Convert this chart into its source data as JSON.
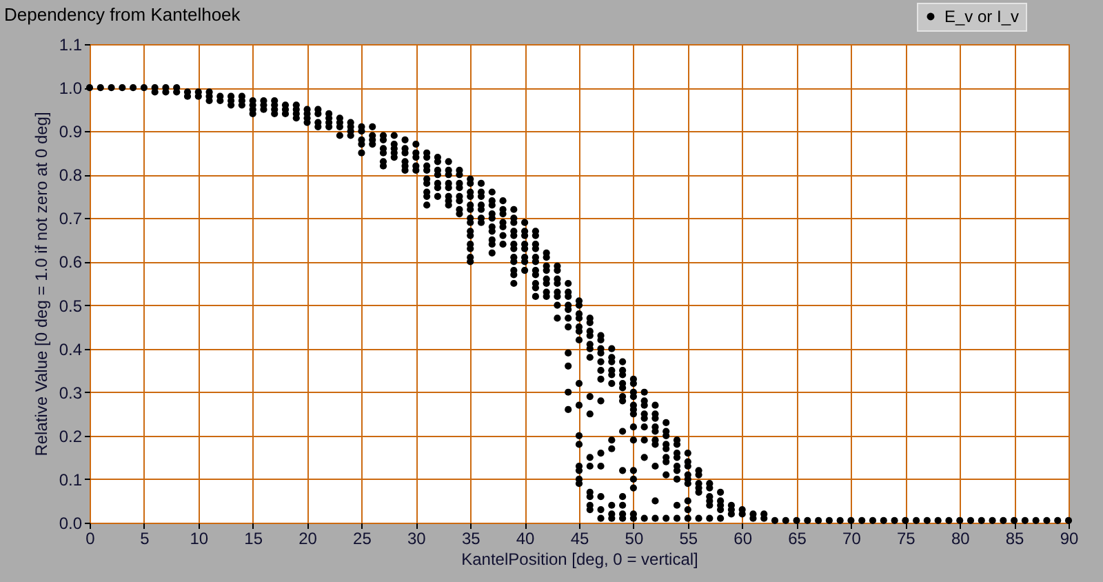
{
  "chart_data": {
    "type": "scatter",
    "title": "Dependency from Kantelhoek",
    "xlabel": "KantelPosition [deg, 0 = vertical]",
    "ylabel": "Relative Value [0 deg = 1.0 if not zero at 0 deg]",
    "xlim": [
      0,
      90
    ],
    "ylim": [
      0,
      1.1
    ],
    "xticks": [
      0,
      5,
      10,
      15,
      20,
      25,
      30,
      35,
      40,
      45,
      50,
      55,
      60,
      65,
      70,
      75,
      80,
      85,
      90
    ],
    "yticks": [
      {
        "value": 0,
        "label": "0.0"
      },
      {
        "value": 0.1,
        "label": "0.1"
      },
      {
        "value": 0.2,
        "label": "0.2"
      },
      {
        "value": 0.3,
        "label": "0.3"
      },
      {
        "value": 0.4,
        "label": "0.4"
      },
      {
        "value": 0.5,
        "label": "0.5"
      },
      {
        "value": 0.6,
        "label": "0.6"
      },
      {
        "value": 0.7,
        "label": "0.7"
      },
      {
        "value": 0.8,
        "label": "0.8"
      },
      {
        "value": 0.9,
        "label": "0.9"
      },
      {
        "value": 1,
        "label": "1.0"
      },
      {
        "value": 1.1,
        "label": "1.1"
      }
    ],
    "grid": true,
    "legend": "top right",
    "marker": "circle",
    "series": [
      {
        "name": "E_v or I_v",
        "color": "#000000",
        "x": [
          0,
          1,
          2,
          3,
          4,
          5,
          6,
          6,
          7,
          7,
          8,
          8,
          9,
          9,
          10,
          10,
          11,
          11,
          11,
          12,
          12,
          13,
          13,
          13,
          14,
          14,
          14,
          15,
          15,
          15,
          15,
          16,
          16,
          16,
          17,
          17,
          17,
          17,
          18,
          18,
          18,
          19,
          19,
          19,
          19,
          20,
          20,
          20,
          20,
          21,
          21,
          21,
          21,
          22,
          22,
          22,
          22,
          23,
          23,
          23,
          23,
          24,
          24,
          24,
          24,
          25,
          25,
          25,
          25,
          25,
          26,
          26,
          26,
          26,
          27,
          27,
          27,
          27,
          27,
          27,
          28,
          28,
          28,
          28,
          28,
          29,
          29,
          29,
          29,
          29,
          29,
          30,
          30,
          30,
          30,
          30,
          31,
          31,
          31,
          31,
          31,
          31,
          31,
          31,
          31,
          32,
          32,
          32,
          32,
          32,
          32,
          32,
          33,
          33,
          33,
          33,
          33,
          33,
          33,
          33,
          34,
          34,
          34,
          34,
          34,
          34,
          34,
          34,
          35,
          35,
          35,
          35,
          35,
          35,
          35,
          35,
          35,
          35,
          35,
          35,
          35,
          35,
          36,
          36,
          36,
          36,
          36,
          36,
          36,
          37,
          37,
          37,
          37,
          37,
          37,
          37,
          37,
          37,
          37,
          38,
          38,
          38,
          38,
          38,
          38,
          38,
          39,
          39,
          39,
          39,
          39,
          39,
          39,
          39,
          39,
          39,
          39,
          39,
          40,
          40,
          40,
          40,
          40,
          40,
          40,
          40,
          41,
          41,
          41,
          41,
          41,
          41,
          41,
          41,
          41,
          41,
          41,
          42,
          42,
          42,
          42,
          42,
          42,
          42,
          42,
          43,
          43,
          43,
          43,
          43,
          43,
          43,
          43,
          44,
          44,
          44,
          44,
          44,
          44,
          44,
          44,
          44,
          44,
          44,
          45,
          45,
          45,
          45,
          45,
          45,
          45,
          45,
          45,
          45,
          45,
          45,
          45,
          45,
          45,
          46,
          46,
          46,
          46,
          46,
          46,
          46,
          46,
          46,
          46,
          46,
          46,
          46,
          46,
          46,
          47,
          47,
          47,
          47,
          47,
          47,
          47,
          47,
          47,
          47,
          47,
          47,
          47,
          48,
          48,
          48,
          48,
          48,
          48,
          48,
          48,
          48,
          48,
          48,
          49,
          49,
          49,
          49,
          49,
          49,
          49,
          49,
          49,
          49,
          49,
          49,
          49,
          50,
          50,
          50,
          50,
          50,
          50,
          50,
          50,
          50,
          50,
          50,
          50,
          50,
          50,
          51,
          51,
          51,
          51,
          51,
          51,
          51,
          51,
          51,
          52,
          52,
          52,
          52,
          52,
          52,
          52,
          52,
          52,
          52,
          53,
          53,
          53,
          53,
          53,
          53,
          53,
          53,
          53,
          54,
          54,
          54,
          54,
          54,
          54,
          54,
          54,
          54,
          55,
          55,
          55,
          55,
          55,
          55,
          55,
          55,
          55,
          56,
          56,
          56,
          56,
          56,
          56,
          57,
          57,
          57,
          57,
          57,
          57,
          58,
          58,
          58,
          58,
          58,
          59,
          59,
          59,
          60,
          60,
          61,
          61,
          62,
          62,
          63,
          64,
          65,
          66,
          67,
          68,
          69,
          70,
          71,
          72,
          73,
          74,
          75,
          76,
          77,
          78,
          79,
          80,
          81,
          82,
          83,
          84,
          85,
          86,
          87,
          88,
          89,
          90
        ],
        "values": [
          1.0,
          1.0,
          1.0,
          1.0,
          1.0,
          1.0,
          1.0,
          0.99,
          1.0,
          0.99,
          1.0,
          0.99,
          0.99,
          0.98,
          0.99,
          0.98,
          0.99,
          0.98,
          0.97,
          0.98,
          0.97,
          0.98,
          0.97,
          0.96,
          0.98,
          0.97,
          0.96,
          0.97,
          0.96,
          0.95,
          0.94,
          0.97,
          0.96,
          0.95,
          0.97,
          0.96,
          0.95,
          0.94,
          0.96,
          0.95,
          0.94,
          0.96,
          0.95,
          0.94,
          0.93,
          0.95,
          0.94,
          0.93,
          0.92,
          0.95,
          0.94,
          0.92,
          0.91,
          0.94,
          0.93,
          0.92,
          0.91,
          0.93,
          0.92,
          0.91,
          0.89,
          0.92,
          0.91,
          0.9,
          0.89,
          0.91,
          0.9,
          0.88,
          0.87,
          0.85,
          0.91,
          0.89,
          0.88,
          0.87,
          0.89,
          0.88,
          0.86,
          0.85,
          0.83,
          0.82,
          0.89,
          0.87,
          0.86,
          0.85,
          0.84,
          0.88,
          0.86,
          0.85,
          0.83,
          0.82,
          0.81,
          0.87,
          0.85,
          0.84,
          0.82,
          0.81,
          0.85,
          0.84,
          0.82,
          0.81,
          0.79,
          0.78,
          0.76,
          0.75,
          0.73,
          0.84,
          0.83,
          0.81,
          0.8,
          0.78,
          0.77,
          0.75,
          0.83,
          0.81,
          0.8,
          0.78,
          0.77,
          0.75,
          0.74,
          0.73,
          0.81,
          0.8,
          0.78,
          0.77,
          0.75,
          0.74,
          0.72,
          0.71,
          0.79,
          0.78,
          0.76,
          0.75,
          0.73,
          0.72,
          0.7,
          0.69,
          0.67,
          0.66,
          0.64,
          0.63,
          0.61,
          0.6,
          0.78,
          0.76,
          0.75,
          0.73,
          0.72,
          0.7,
          0.69,
          0.76,
          0.74,
          0.73,
          0.71,
          0.7,
          0.68,
          0.67,
          0.65,
          0.64,
          0.62,
          0.74,
          0.72,
          0.71,
          0.69,
          0.68,
          0.66,
          0.64,
          0.72,
          0.7,
          0.69,
          0.67,
          0.66,
          0.64,
          0.63,
          0.61,
          0.6,
          0.58,
          0.57,
          0.55,
          0.69,
          0.67,
          0.66,
          0.64,
          0.63,
          0.61,
          0.6,
          0.58,
          0.67,
          0.66,
          0.64,
          0.63,
          0.61,
          0.6,
          0.58,
          0.57,
          0.55,
          0.54,
          0.52,
          0.62,
          0.61,
          0.59,
          0.58,
          0.56,
          0.55,
          0.53,
          0.52,
          0.59,
          0.58,
          0.56,
          0.55,
          0.53,
          0.52,
          0.5,
          0.47,
          0.55,
          0.53,
          0.52,
          0.5,
          0.49,
          0.47,
          0.45,
          0.39,
          0.36,
          0.3,
          0.26,
          0.51,
          0.5,
          0.48,
          0.47,
          0.45,
          0.44,
          0.42,
          0.32,
          0.27,
          0.2,
          0.18,
          0.13,
          0.12,
          0.1,
          0.09,
          0.47,
          0.46,
          0.44,
          0.43,
          0.41,
          0.4,
          0.38,
          0.29,
          0.25,
          0.15,
          0.13,
          0.07,
          0.06,
          0.04,
          0.03,
          0.43,
          0.42,
          0.4,
          0.39,
          0.37,
          0.35,
          0.33,
          0.28,
          0.16,
          0.13,
          0.06,
          0.03,
          0.01,
          0.4,
          0.38,
          0.37,
          0.35,
          0.34,
          0.32,
          0.19,
          0.17,
          0.04,
          0.02,
          0.01,
          0.37,
          0.35,
          0.34,
          0.32,
          0.31,
          0.29,
          0.28,
          0.21,
          0.12,
          0.06,
          0.04,
          0.02,
          0.01,
          0.33,
          0.32,
          0.3,
          0.29,
          0.27,
          0.26,
          0.25,
          0.22,
          0.19,
          0.12,
          0.1,
          0.08,
          0.02,
          0.01,
          0.3,
          0.28,
          0.27,
          0.25,
          0.24,
          0.22,
          0.19,
          0.15,
          0.01,
          0.27,
          0.25,
          0.24,
          0.22,
          0.21,
          0.19,
          0.18,
          0.13,
          0.05,
          0.01,
          0.23,
          0.21,
          0.2,
          0.18,
          0.17,
          0.15,
          0.14,
          0.11,
          0.01,
          0.19,
          0.18,
          0.16,
          0.15,
          0.13,
          0.12,
          0.1,
          0.04,
          0.01,
          0.16,
          0.14,
          0.13,
          0.11,
          0.1,
          0.09,
          0.05,
          0.03,
          0.01,
          0.12,
          0.11,
          0.09,
          0.08,
          0.07,
          0.01,
          0.09,
          0.08,
          0.06,
          0.05,
          0.04,
          0.01,
          0.07,
          0.05,
          0.04,
          0.03,
          0.01,
          0.04,
          0.03,
          0.02,
          0.03,
          0.02,
          0.02,
          0.01,
          0.02,
          0.01,
          0.005,
          0.005,
          0.005,
          0.005,
          0.005,
          0.005,
          0.005,
          0.005,
          0.005,
          0.005,
          0.005,
          0.005,
          0.005,
          0.005,
          0.005,
          0.005,
          0.005,
          0.005,
          0.005,
          0.005,
          0.005,
          0.005,
          0.005,
          0.005,
          0.005,
          0.005,
          0.005,
          0.005
        ]
      }
    ]
  }
}
